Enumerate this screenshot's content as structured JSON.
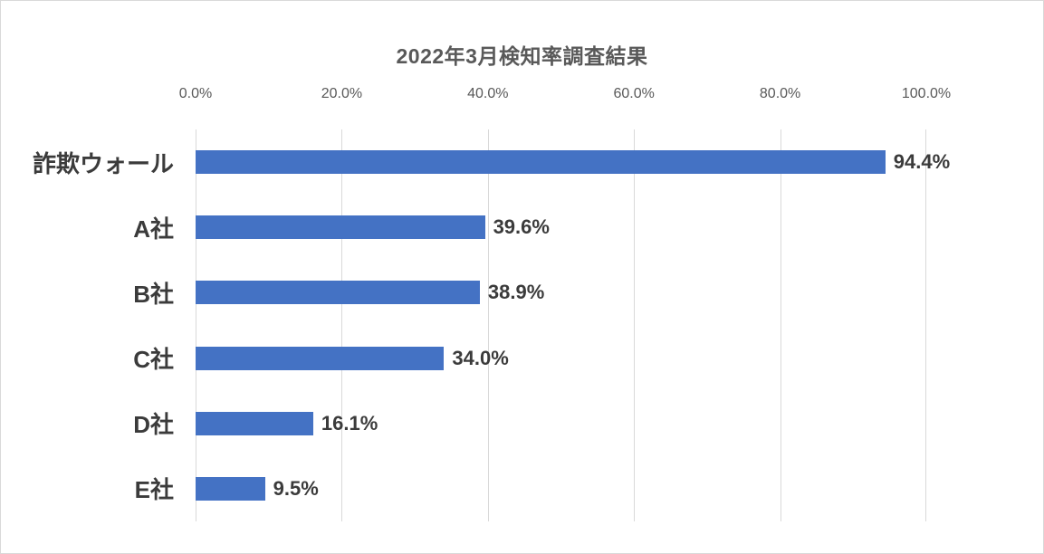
{
  "chart_data": {
    "type": "bar",
    "orientation": "horizontal",
    "title": "2022年3月検知率調査結果",
    "categories": [
      "詐欺ウォール",
      "A社",
      "B社",
      "C社",
      "D社",
      "E社"
    ],
    "values": [
      94.4,
      39.6,
      38.9,
      34.0,
      16.1,
      9.5
    ],
    "value_labels": [
      "94.4%",
      "39.6%",
      "38.9%",
      "34.0%",
      "16.1%",
      "9.5%"
    ],
    "x_ticks": [
      "0.0%",
      "20.0%",
      "40.0%",
      "60.0%",
      "80.0%",
      "100.0%"
    ],
    "x_tick_values": [
      0,
      20,
      40,
      60,
      80,
      100
    ],
    "xlim": [
      0,
      100
    ],
    "xlabel": "",
    "ylabel": "",
    "grid": true,
    "legend": false,
    "bar_color": "#4472C4",
    "gridline_color": "#D9D9D9",
    "title_color": "#595959",
    "tick_color": "#595959",
    "label_color": "#3B3B3B"
  }
}
